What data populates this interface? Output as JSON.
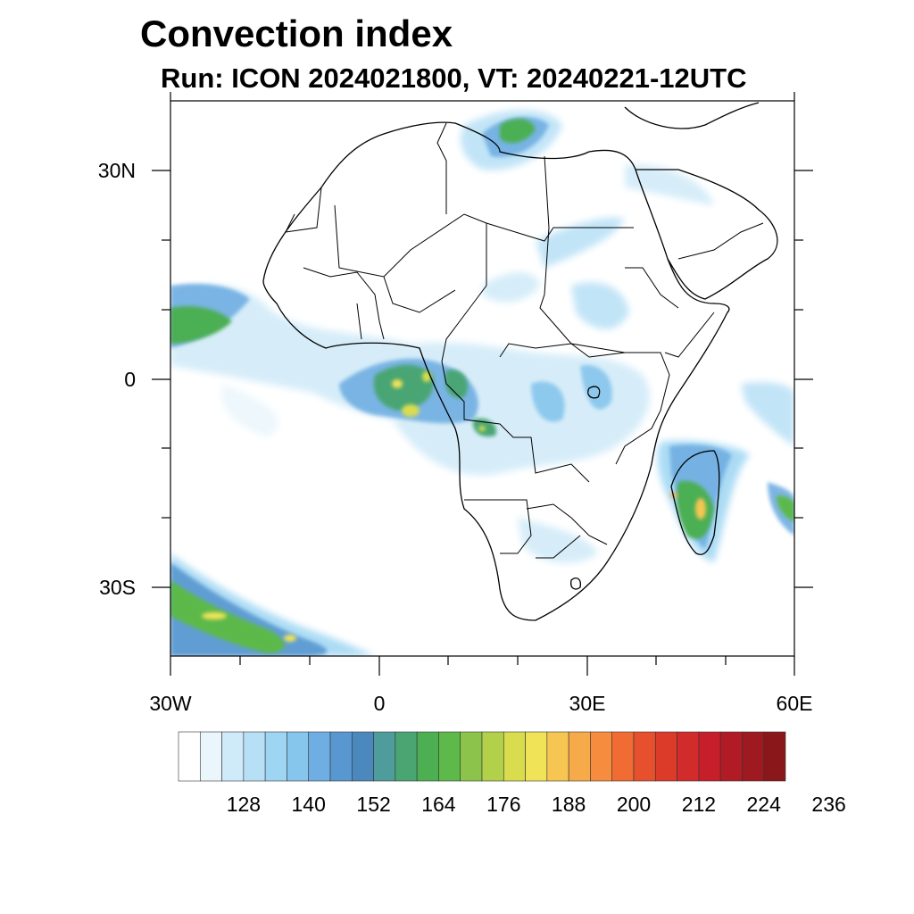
{
  "header": {
    "title": "Convection index",
    "subtitle": "Run: ICON 2024021800,  VT: 20240221-12UTC"
  },
  "axes": {
    "lat_labels": [
      "30N",
      "0",
      "30S"
    ],
    "lon_labels": [
      "30W",
      "0",
      "30E",
      "60E"
    ]
  },
  "colorbar": {
    "labels": [
      "128",
      "140",
      "152",
      "164",
      "176",
      "188",
      "200",
      "212",
      "224",
      "236"
    ],
    "colors": [
      "#ffffff",
      "#eaf6fc",
      "#cfeaf8",
      "#b7e0f6",
      "#9dd5f3",
      "#86c5ec",
      "#6faee2",
      "#5897d0",
      "#4a88bd",
      "#4e9c9c",
      "#4aa573",
      "#4caf52",
      "#5cb94a",
      "#8cc34a",
      "#b3d04a",
      "#d9dd4d",
      "#f1e358",
      "#f7c652",
      "#f6aa4a",
      "#f58c3e",
      "#f06c33",
      "#e6502c",
      "#dc3b2a",
      "#d22b2b",
      "#c61f2a",
      "#b01b25",
      "#9e1a20",
      "#8a1719"
    ]
  }
}
